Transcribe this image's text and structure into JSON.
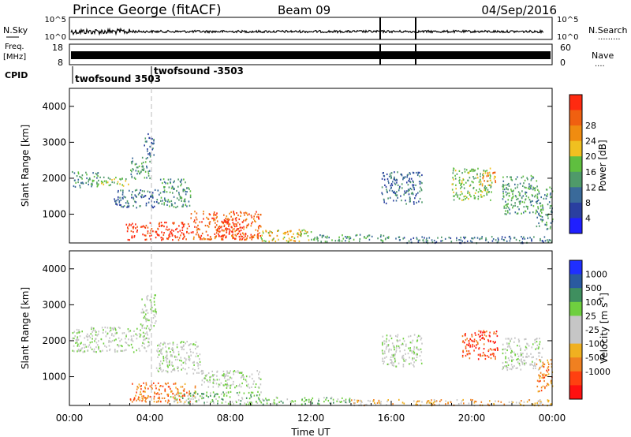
{
  "header": {
    "station": "Prince George (fitACF)",
    "beam": "Beam 09",
    "date": "04/Sep/2016"
  },
  "top_panel": {
    "left_label": "N.Sky",
    "right_label": "N.Search",
    "ticks_left": [
      "10^5",
      "10^0"
    ],
    "ticks_right": [
      "10^5",
      "10^0"
    ]
  },
  "freq_panel": {
    "left_label_1": "Freq.",
    "left_label_2": "[MHz]",
    "right_label": "Nave",
    "ticks_left": [
      "18",
      "8"
    ],
    "ticks_right": [
      "60",
      "0"
    ]
  },
  "cpid": {
    "label": "CPID",
    "entries": [
      "twofsound 3503",
      "twofsound -3503"
    ]
  },
  "colors": {
    "power": [
      "#1f1fff",
      "#2a3fa0",
      "#3a6a9a",
      "#4f9a6a",
      "#5fbf3f",
      "#f0c020",
      "#f08c10",
      "#f06010",
      "#ff2a10"
    ],
    "velocity": [
      "#1f2fff",
      "#2a5aa0",
      "#3f8f5f",
      "#6fcf3f",
      "#c6c6c6",
      "#c6c6c6",
      "#f0b020",
      "#f08020",
      "#ff4010",
      "#ff1010"
    ]
  },
  "chart_data": [
    {
      "type": "heatmap",
      "name": "power",
      "xlabel": "",
      "ylabel": "Slant Range [km]",
      "xlim": [
        0,
        24
      ],
      "ylim": [
        200,
        4500
      ],
      "yticks": [
        "1000",
        "2000",
        "3000",
        "4000"
      ],
      "colorbar": {
        "label": "Power [dB]",
        "range": [
          0,
          32
        ],
        "tick_labels": [
          "4",
          "8",
          "12",
          "16",
          "20",
          "24",
          "28"
        ]
      },
      "regions": [
        {
          "t0": 0.1,
          "t1": 1.5,
          "r0": 1750,
          "r1": 2200,
          "level": 3
        },
        {
          "t0": 1.5,
          "t1": 3.0,
          "r0": 1800,
          "r1": 2050,
          "level": 4
        },
        {
          "t0": 3.0,
          "t1": 4.0,
          "r0": 2000,
          "r1": 2600,
          "level": 3
        },
        {
          "t0": 3.7,
          "t1": 4.2,
          "r0": 2600,
          "r1": 3300,
          "level": 2
        },
        {
          "t0": 2.2,
          "t1": 4.5,
          "r0": 1200,
          "r1": 1700,
          "level": 2
        },
        {
          "t0": 4.5,
          "t1": 6.0,
          "r0": 1200,
          "r1": 2000,
          "level": 3
        },
        {
          "t0": 2.8,
          "t1": 6.0,
          "r0": 300,
          "r1": 800,
          "level": 8
        },
        {
          "t0": 6.0,
          "t1": 9.5,
          "r0": 300,
          "r1": 1100,
          "level": 7
        },
        {
          "t0": 7.2,
          "t1": 8.6,
          "r0": 350,
          "r1": 900,
          "level": 8
        },
        {
          "t0": 9.5,
          "t1": 12.0,
          "r0": 250,
          "r1": 600,
          "level": 5
        },
        {
          "t0": 12.0,
          "t1": 16.0,
          "r0": 250,
          "r1": 450,
          "level": 3
        },
        {
          "t0": 16.0,
          "t1": 24.0,
          "r0": 220,
          "r1": 400,
          "level": 2
        },
        {
          "t0": 15.5,
          "t1": 17.5,
          "r0": 1300,
          "r1": 2200,
          "level": 2
        },
        {
          "t0": 19.0,
          "t1": 21.0,
          "r0": 1400,
          "r1": 2300,
          "level": 4
        },
        {
          "t0": 20.5,
          "t1": 21.2,
          "r0": 1800,
          "r1": 2200,
          "level": 6
        },
        {
          "t0": 21.5,
          "t1": 23.2,
          "r0": 1000,
          "r1": 2100,
          "level": 3
        },
        {
          "t0": 23.2,
          "t1": 24.0,
          "r0": 600,
          "r1": 1800,
          "level": 3
        }
      ]
    },
    {
      "type": "heatmap",
      "name": "velocity",
      "xlabel": "Time UT",
      "ylabel": "Slant Range [km]",
      "xlim": [
        0,
        24
      ],
      "ylim": [
        200,
        4500
      ],
      "yticks": [
        "1000",
        "2000",
        "3000",
        "4000"
      ],
      "xticks": [
        "00:00",
        "04:00",
        "08:00",
        "12:00",
        "16:00",
        "20:00",
        "00:00"
      ],
      "colorbar": {
        "label": "Velocity [m s",
        "label_sup": "-1",
        "label_end": "]",
        "tick_labels": [
          "1000",
          "500",
          "100",
          "25",
          "-25",
          "-100",
          "-500",
          "-1000"
        ]
      },
      "regions": [
        {
          "t0": 0.1,
          "t1": 4.0,
          "r0": 1700,
          "r1": 2400,
          "level": 4
        },
        {
          "t0": 3.5,
          "t1": 4.3,
          "r0": 2400,
          "r1": 3300,
          "level": 4
        },
        {
          "t0": 4.3,
          "t1": 6.5,
          "r0": 1100,
          "r1": 2000,
          "level": 4
        },
        {
          "t0": 6.5,
          "t1": 9.5,
          "r0": 700,
          "r1": 1200,
          "level": 4
        },
        {
          "t0": 3.0,
          "t1": 6.3,
          "r0": 300,
          "r1": 850,
          "level": 7
        },
        {
          "t0": 5.0,
          "t1": 9.5,
          "r0": 250,
          "r1": 600,
          "level": 3
        },
        {
          "t0": 9.5,
          "t1": 14.0,
          "r0": 250,
          "r1": 450,
          "level": 3
        },
        {
          "t0": 14.0,
          "t1": 24.0,
          "r0": 220,
          "r1": 380,
          "level": 6
        },
        {
          "t0": 15.5,
          "t1": 17.5,
          "r0": 1300,
          "r1": 2200,
          "level": 4
        },
        {
          "t0": 19.5,
          "t1": 21.3,
          "r0": 1500,
          "r1": 2300,
          "level": 8
        },
        {
          "t0": 21.5,
          "t1": 23.5,
          "r0": 1200,
          "r1": 2100,
          "level": 4
        },
        {
          "t0": 23.2,
          "t1": 24.0,
          "r0": 600,
          "r1": 1500,
          "level": 7
        }
      ]
    }
  ]
}
